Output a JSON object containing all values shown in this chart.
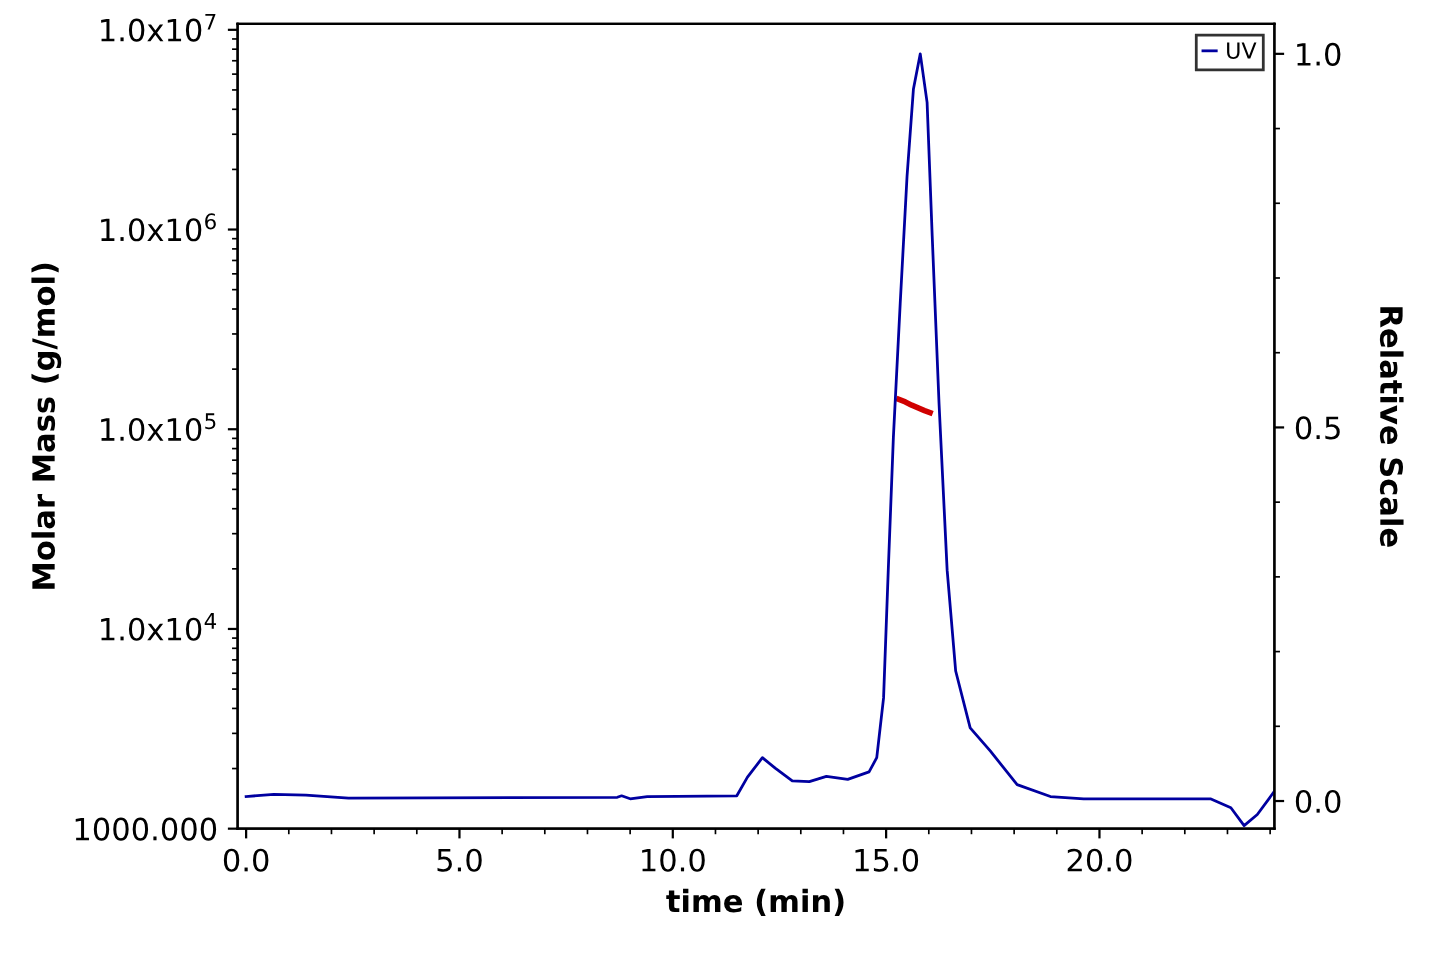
{
  "chart_data": {
    "type": "line",
    "xlabel": "time (min)",
    "ylabel": "Molar Mass (g/mol)",
    "y2label": "Relative Scale",
    "xlim": [
      -0.2,
      24.1
    ],
    "xticks": [
      {
        "value": 0,
        "label": "0.0"
      },
      {
        "value": 5,
        "label": "5.0"
      },
      {
        "value": 10,
        "label": "10.0"
      },
      {
        "value": 15,
        "label": "15.0"
      },
      {
        "value": 20,
        "label": "20.0"
      }
    ],
    "log": "y",
    "ylim": [
      1000,
      10700000
    ],
    "yticks": [
      {
        "value": 1000,
        "label": "1000.000"
      },
      {
        "value": 10000,
        "label": "1.0x10$^{4}$"
      },
      {
        "value": 100000,
        "label": "1.0x10$^{5}$"
      },
      {
        "value": 1000000,
        "label": "1.0x10$^{6}$"
      },
      {
        "value": 10000000,
        "label": "1.0x10$^{7}$"
      }
    ],
    "y2lim": [
      -0.037,
      1.04
    ],
    "y2ticks": [
      {
        "value": 0,
        "label": "0.0"
      },
      {
        "value": 0.5,
        "label": "0.5"
      },
      {
        "value": 1,
        "label": "1.0"
      }
    ],
    "grid": false,
    "legend": "top right",
    "marker": "none",
    "line_style": "solid",
    "series": [
      {
        "name": "UV",
        "color": "#0000a0",
        "axis": "y2",
        "x": [
          0,
          0.65,
          1.4,
          2.4,
          8.7,
          8.8,
          9.0,
          9.4,
          11.5,
          11.75,
          12.1,
          12.4,
          12.8,
          13.2,
          13.6,
          14.1,
          14.6,
          14.78,
          14.94,
          15.05,
          15.17,
          15.33,
          15.49,
          15.64,
          15.8,
          15.96,
          16.08,
          16.24,
          16.43,
          16.63,
          16.97,
          17.44,
          18.07,
          18.85,
          19.63,
          22.6,
          23.08,
          23.39,
          23.7,
          24.1
        ],
        "values": [
          0.006,
          0.009,
          0.008,
          0.004,
          0.005,
          0.007,
          0.003,
          0.006,
          0.007,
          0.032,
          0.058,
          0.044,
          0.027,
          0.026,
          0.033,
          0.029,
          0.039,
          0.058,
          0.138,
          0.309,
          0.487,
          0.666,
          0.836,
          0.953,
          1.0,
          0.935,
          0.756,
          0.532,
          0.309,
          0.174,
          0.098,
          0.067,
          0.022,
          0.006,
          0.003,
          0.003,
          -0.009,
          -0.033,
          -0.018,
          0.013
        ]
      },
      {
        "color": "#d00000",
        "x": [
          15.3,
          15.45,
          15.6,
          15.75,
          15.9,
          16.03
        ],
        "values": [
          141000,
          137000,
          132000,
          128000,
          124000,
          121000
        ]
      }
    ]
  }
}
